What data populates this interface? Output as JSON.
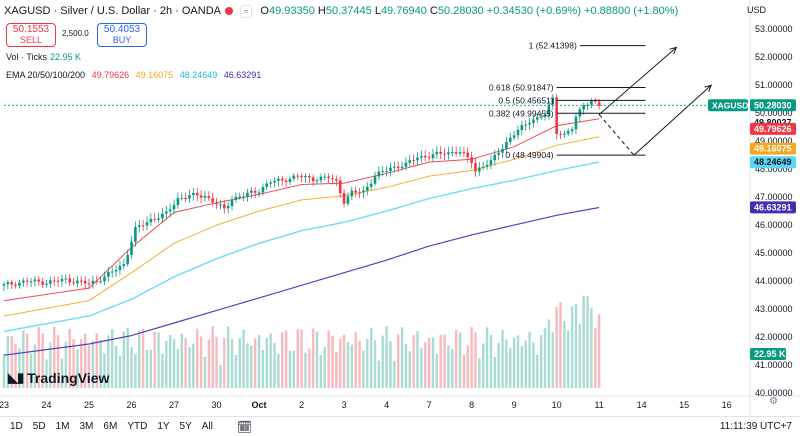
{
  "header": {
    "symbol_title": "XAGUSD · Silver / U.S. Dollar · 2h · OANDA",
    "o_label": "O",
    "o_value": "49.93350",
    "h_label": "H",
    "h_value": "50.37445",
    "l_label": "L",
    "l_value": "49.76940",
    "c_label": "C",
    "c_value": "50.28030",
    "change": "+0.34530 (+0.69%)",
    "extra_change": "+0.88800 (+1.80%)",
    "currency": "USD"
  },
  "trade": {
    "sell_price": "50.1553",
    "sell_sup": "0",
    "sell_label": "SELL",
    "spread": "2,500.0",
    "buy_price": "50.4053",
    "buy_sup": "0",
    "buy_label": "BUY"
  },
  "indicators": {
    "vol_label": "Vol · Ticks",
    "vol_value": "22.95 K",
    "ema_label": "EMA 20/50/100/200",
    "ema20": "49.79626",
    "ema50": "49.16075",
    "ema100": "48.24649",
    "ema200": "46.63291"
  },
  "colors": {
    "up": "#089981",
    "down": "#f23645",
    "ema20": "#f23645",
    "ema50": "#f5a623",
    "ema100": "#5ad8f5",
    "ema200": "#3f2fb5",
    "price_label": "#089981"
  },
  "chart_data": {
    "type": "candlestick",
    "title": "XAGUSD · Silver / U.S. Dollar · 2h · OANDA",
    "ylim": [
      40.0,
      53.4
    ],
    "y_ticks": [
      "53.00000",
      "52.00000",
      "51.00000",
      "50.00000",
      "49.00000",
      "48.00000",
      "47.00000",
      "46.00000",
      "45.00000",
      "44.00000",
      "43.00000",
      "42.00000",
      "41.00000",
      "40.00000"
    ],
    "y_tick_values": [
      53,
      52,
      51,
      50,
      49,
      48,
      47,
      46,
      45,
      44,
      43,
      42,
      41,
      40
    ],
    "x_tick_labels": [
      "23",
      "24",
      "25",
      "26",
      "27",
      "30",
      "Oct",
      "2",
      "3",
      "4",
      "7",
      "8",
      "9",
      "10",
      "11",
      "14",
      "15",
      "16"
    ],
    "x_tick_index": [
      0,
      11,
      22,
      33,
      44,
      55,
      66,
      77,
      88,
      99,
      110,
      121,
      132,
      143,
      154,
      165,
      176,
      187
    ],
    "close_path": [
      [
        0,
        43.85
      ],
      [
        6,
        44.0
      ],
      [
        11,
        43.95
      ],
      [
        16,
        44.05
      ],
      [
        22,
        43.9
      ],
      [
        26,
        44.15
      ],
      [
        31,
        44.6
      ],
      [
        34,
        45.85
      ],
      [
        38,
        46.2
      ],
      [
        42,
        46.4
      ],
      [
        45,
        46.95
      ],
      [
        48,
        47.05
      ],
      [
        52,
        47.05
      ],
      [
        55,
        46.75
      ],
      [
        57,
        46.55
      ],
      [
        59,
        46.95
      ],
      [
        62,
        47.05
      ],
      [
        66,
        47.25
      ],
      [
        69,
        47.55
      ],
      [
        72,
        47.6
      ],
      [
        76,
        47.75
      ],
      [
        80,
        47.65
      ],
      [
        84,
        47.7
      ],
      [
        86,
        47.55
      ],
      [
        88,
        46.85
      ],
      [
        90,
        47.15
      ],
      [
        93,
        47.2
      ],
      [
        96,
        47.75
      ],
      [
        100,
        48.05
      ],
      [
        104,
        48.15
      ],
      [
        107,
        48.45
      ],
      [
        110,
        48.45
      ],
      [
        114,
        48.6
      ],
      [
        118,
        48.6
      ],
      [
        121,
        48.3
      ],
      [
        122,
        47.95
      ],
      [
        126,
        48.25
      ],
      [
        128,
        48.65
      ],
      [
        131,
        49.1
      ],
      [
        134,
        49.5
      ],
      [
        136,
        49.75
      ],
      [
        138,
        49.8
      ],
      [
        140,
        49.95
      ],
      [
        142,
        50.55
      ],
      [
        143,
        49.35
      ],
      [
        145,
        49.2
      ],
      [
        147,
        49.45
      ],
      [
        148,
        49.85
      ],
      [
        150,
        50.35
      ],
      [
        152,
        50.4
      ],
      [
        154,
        50.28
      ]
    ],
    "ema": [
      {
        "name": "EMA 20",
        "value": 49.79626,
        "path": [
          [
            0,
            43.3
          ],
          [
            22,
            43.75
          ],
          [
            33,
            45.2
          ],
          [
            44,
            46.45
          ],
          [
            55,
            46.8
          ],
          [
            66,
            47.1
          ],
          [
            77,
            47.45
          ],
          [
            88,
            47.5
          ],
          [
            99,
            47.85
          ],
          [
            110,
            48.25
          ],
          [
            121,
            48.35
          ],
          [
            132,
            48.8
          ],
          [
            143,
            49.55
          ],
          [
            154,
            49.8
          ]
        ]
      },
      {
        "name": "EMA 50",
        "value": 49.16075,
        "path": [
          [
            0,
            42.75
          ],
          [
            22,
            43.3
          ],
          [
            33,
            44.3
          ],
          [
            44,
            45.35
          ],
          [
            55,
            46.0
          ],
          [
            66,
            46.5
          ],
          [
            77,
            46.9
          ],
          [
            88,
            47.05
          ],
          [
            99,
            47.35
          ],
          [
            110,
            47.75
          ],
          [
            121,
            47.95
          ],
          [
            132,
            48.35
          ],
          [
            143,
            48.85
          ],
          [
            154,
            49.16
          ]
        ]
      },
      {
        "name": "EMA 100",
        "value": 48.24649,
        "path": [
          [
            0,
            42.2
          ],
          [
            22,
            42.75
          ],
          [
            33,
            43.35
          ],
          [
            44,
            44.15
          ],
          [
            55,
            44.8
          ],
          [
            66,
            45.35
          ],
          [
            77,
            45.8
          ],
          [
            88,
            46.1
          ],
          [
            99,
            46.5
          ],
          [
            110,
            46.95
          ],
          [
            121,
            47.3
          ],
          [
            132,
            47.6
          ],
          [
            143,
            47.95
          ],
          [
            154,
            48.25
          ]
        ]
      },
      {
        "name": "EMA 200",
        "value": 46.63291,
        "path": [
          [
            0,
            41.35
          ],
          [
            22,
            41.75
          ],
          [
            33,
            42.05
          ],
          [
            44,
            42.5
          ],
          [
            55,
            42.95
          ],
          [
            66,
            43.4
          ],
          [
            77,
            43.85
          ],
          [
            88,
            44.3
          ],
          [
            99,
            44.75
          ],
          [
            110,
            45.25
          ],
          [
            121,
            45.65
          ],
          [
            132,
            46.0
          ],
          [
            143,
            46.35
          ],
          [
            154,
            46.63
          ]
        ]
      }
    ],
    "fibonacci": [
      {
        "label": "1 (52.41398)",
        "value": 52.41398
      },
      {
        "label": "0.618 (50.91847)",
        "value": 50.91847
      },
      {
        "label": "0.5 (50.45651)",
        "value": 50.45651
      },
      {
        "label": "0.382 (49.99455)",
        "value": 49.99455
      },
      {
        "label": "0 (48.49904)",
        "value": 48.49904
      }
    ],
    "projection": [
      {
        "style": "dashed",
        "points": [
          [
            154,
            49.95
          ],
          [
            163,
            48.5
          ]
        ]
      },
      {
        "style": "solid",
        "points": [
          [
            163,
            48.5
          ],
          [
            183,
            51.0
          ]
        ]
      },
      {
        "style": "solid",
        "points": [
          [
            154,
            49.95
          ],
          [
            174,
            52.35
          ]
        ]
      }
    ],
    "volume_label": "Vol · Ticks",
    "last_volume": "22.95 K",
    "price_labels": [
      {
        "text": "50.28030",
        "value": 50.2803,
        "color": "#089981",
        "tag": "XAGUSD"
      },
      {
        "text": "49.80027",
        "value": 49.80027,
        "color": "none"
      },
      {
        "text": "49.79626",
        "value": 49.79626,
        "color": "#f23645"
      },
      {
        "text": "49.16075",
        "value": 49.16075,
        "color": "#f5a623"
      },
      {
        "text": "48.24649",
        "value": 48.24649,
        "color": "#5ad8f5"
      },
      {
        "text": "46.63291",
        "value": 46.63291,
        "color": "#3f2fb5"
      }
    ],
    "volume_badge": "22.95 K"
  },
  "toolbar": {
    "timeframes": [
      "1D",
      "5D",
      "1M",
      "3M",
      "6M",
      "YTD",
      "1Y",
      "5Y",
      "All"
    ],
    "clock": "11:11:39 UTC+7"
  },
  "branding": {
    "logo_text": "TradingView"
  }
}
